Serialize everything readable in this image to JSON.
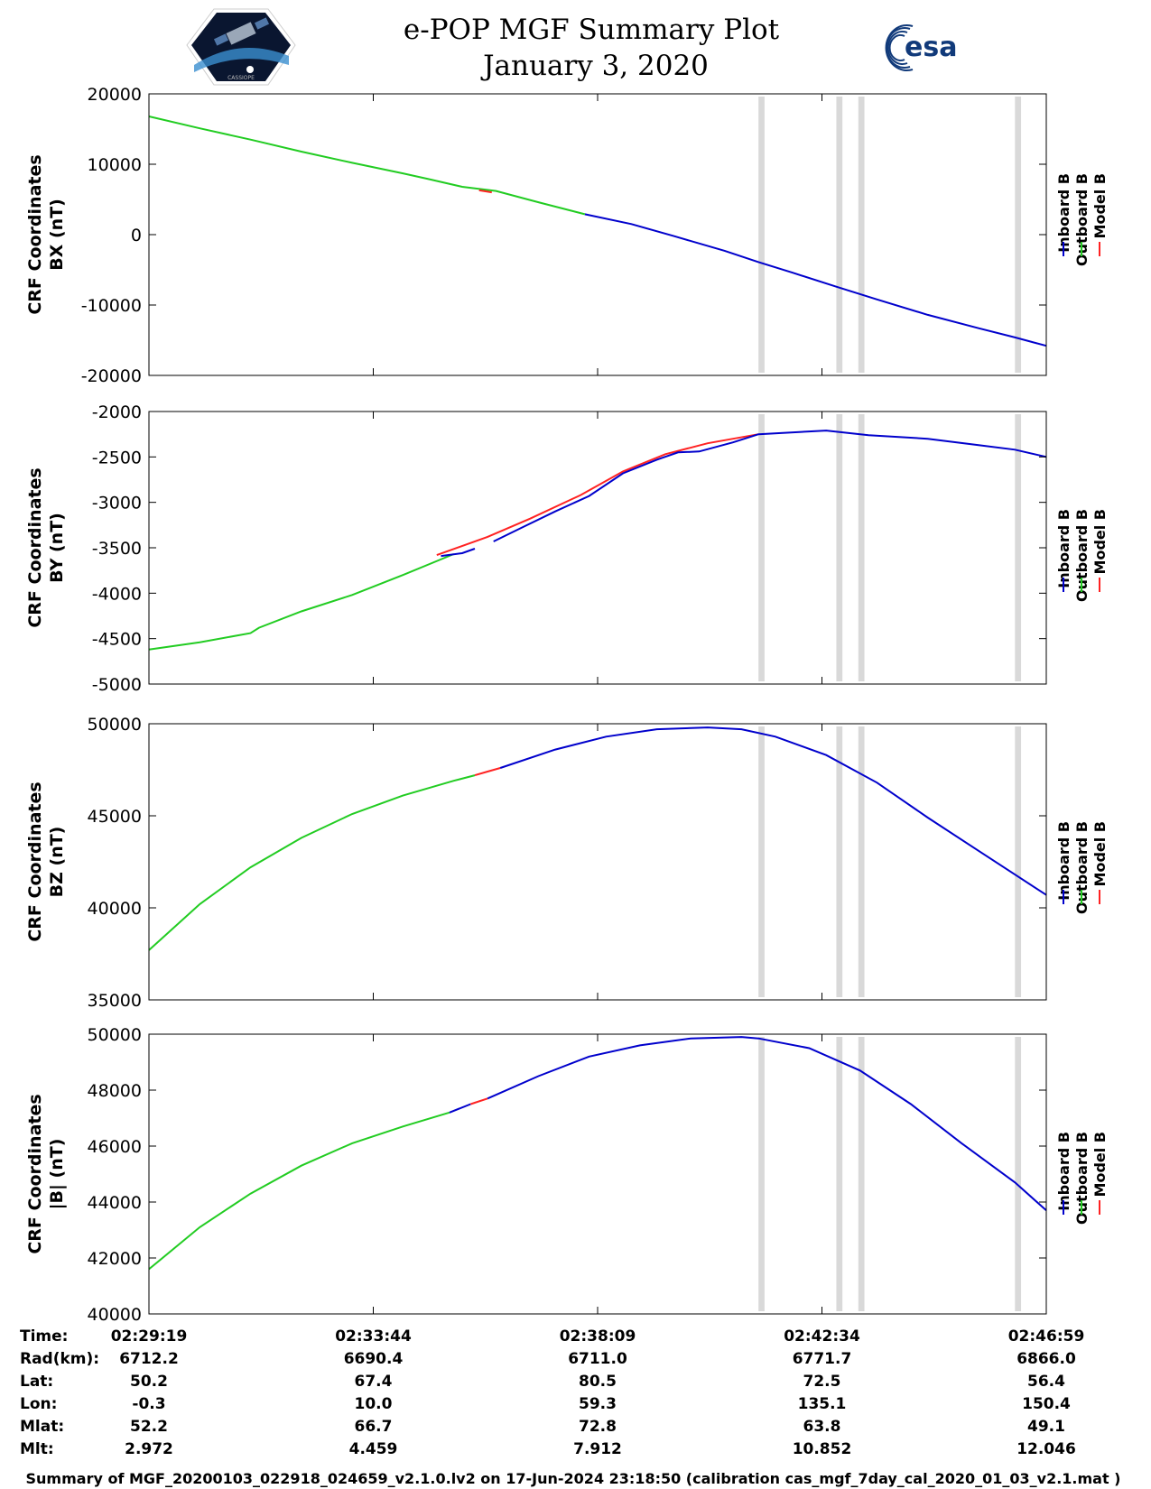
{
  "header": {
    "title_line1": "e-POP MGF Summary Plot",
    "title_line2": "January 3, 2020",
    "left_logo_text": "CASSIOPE",
    "right_logo_text": "esa"
  },
  "colors": {
    "inboard": "#0000cc",
    "outboard": "#22cc22",
    "model": "#ff2222",
    "gap": "#d9d9d9"
  },
  "legend": {
    "inboard": "Inboard B",
    "outboard": "Outboard B",
    "model": "Model B"
  },
  "chart_data": [
    {
      "type": "line",
      "id": "bx",
      "ylabel_line1": "CRF Coordinates",
      "ylabel_line2": "BX (nT)",
      "ylim": [
        -20000,
        20000
      ],
      "yticks": [
        20000,
        10000,
        0,
        -10000,
        -20000
      ],
      "ytick_labels": [
        "20000",
        "10000",
        "0",
        "-10000",
        "-20000"
      ],
      "xlim": [
        0,
        1060
      ],
      "xticks": [
        0,
        265,
        530,
        795,
        1060
      ],
      "gaps": [
        [
          720,
          724
        ],
        [
          812,
          816
        ],
        [
          838,
          842
        ],
        [
          1023,
          1027
        ]
      ],
      "series": [
        {
          "name": "Outboard B",
          "color_key": "outboard",
          "x": [
            0,
            60,
            120,
            180,
            240,
            300,
            330,
            370,
            410,
            460,
            515
          ],
          "y": [
            16800,
            15100,
            13500,
            11800,
            10200,
            8700,
            7900,
            6800,
            6200,
            4600,
            2900
          ]
        },
        {
          "name": "Model B",
          "color_key": "model",
          "x": [
            390,
            400,
            405
          ],
          "y": [
            6300,
            6100,
            6000
          ]
        },
        {
          "name": "Inboard B",
          "color_key": "inboard",
          "x": [
            515,
            570,
            620,
            680,
            720,
            760,
            812,
            860,
            920,
            980,
            1023,
            1060
          ],
          "y": [
            2900,
            1500,
            -200,
            -2300,
            -3900,
            -5400,
            -7400,
            -9200,
            -11400,
            -13300,
            -14600,
            -15800
          ]
        }
      ]
    },
    {
      "type": "line",
      "id": "by",
      "ylabel_line1": "CRF Coordinates",
      "ylabel_line2": "BY (nT)",
      "ylim": [
        -5000,
        -2000
      ],
      "yticks": [
        -2000,
        -2500,
        -3000,
        -3500,
        -4000,
        -4500,
        -5000
      ],
      "ytick_labels": [
        "-2000",
        "-2500",
        "-3000",
        "-3500",
        "-4000",
        "-4500",
        "-5000"
      ],
      "xlim": [
        0,
        1060
      ],
      "xticks": [
        0,
        265,
        530,
        795,
        1060
      ],
      "gaps": [
        [
          720,
          724
        ],
        [
          812,
          816
        ],
        [
          838,
          842
        ],
        [
          1023,
          1027
        ]
      ],
      "series": [
        {
          "name": "Model B",
          "color_key": "model",
          "x": [
            340,
            400,
            450,
            510,
            560,
            610,
            660,
            720
          ],
          "y": [
            -3580,
            -3380,
            -3180,
            -2920,
            -2660,
            -2470,
            -2350,
            -2250
          ]
        },
        {
          "name": "Outboard B",
          "color_key": "outboard",
          "x": [
            0,
            60,
            120,
            130,
            180,
            240,
            300,
            360
          ],
          "y": [
            -4620,
            -4540,
            -4440,
            -4380,
            -4200,
            -4020,
            -3800,
            -3570
          ]
        },
        {
          "name": "Inboard B",
          "color_key": "inboard",
          "x": [
            345,
            370,
            385
          ],
          "y": [
            -3590,
            -3560,
            -3510
          ]
        },
        {
          "name": "Inboard B",
          "color_key": "inboard",
          "x": [
            407,
            440,
            480,
            520,
            560,
            600,
            625,
            650,
            690,
            720,
            780,
            800,
            850,
            920,
            980,
            1023,
            1060
          ],
          "y": [
            -3430,
            -3280,
            -3100,
            -2930,
            -2680,
            -2530,
            -2450,
            -2440,
            -2340,
            -2250,
            -2220,
            -2210,
            -2260,
            -2300,
            -2370,
            -2420,
            -2500
          ]
        }
      ]
    },
    {
      "type": "line",
      "id": "bz",
      "ylabel_line1": "CRF Coordinates",
      "ylabel_line2": "BZ (nT)",
      "ylim": [
        35000,
        50000
      ],
      "yticks": [
        50000,
        45000,
        40000,
        35000
      ],
      "ytick_labels": [
        "50000",
        "45000",
        "40000",
        "35000"
      ],
      "xlim": [
        0,
        1060
      ],
      "xticks": [
        0,
        265,
        530,
        795,
        1060
      ],
      "gaps": [
        [
          720,
          724
        ],
        [
          812,
          816
        ],
        [
          838,
          842
        ],
        [
          1023,
          1027
        ]
      ],
      "series": [
        {
          "name": "Outboard B",
          "color_key": "outboard",
          "x": [
            0,
            60,
            120,
            180,
            240,
            300,
            360,
            385
          ],
          "y": [
            37700,
            40200,
            42200,
            43800,
            45100,
            46100,
            46900,
            47200
          ]
        },
        {
          "name": "Model B",
          "color_key": "model",
          "x": [
            385,
            400,
            415
          ],
          "y": [
            47200,
            47400,
            47600
          ]
        },
        {
          "name": "Inboard B",
          "color_key": "inboard",
          "x": [
            415,
            480,
            540,
            600,
            660,
            700,
            740,
            800,
            860,
            920,
            980,
            1060
          ],
          "y": [
            47600,
            48600,
            49300,
            49700,
            49800,
            49700,
            49300,
            48300,
            46800,
            44900,
            43100,
            40700
          ]
        }
      ]
    },
    {
      "type": "line",
      "id": "bmag",
      "ylabel_line1": "CRF Coordinates",
      "ylabel_line2": "|B| (nT)",
      "ylim": [
        40000,
        50000
      ],
      "yticks": [
        50000,
        48000,
        46000,
        44000,
        42000,
        40000
      ],
      "ytick_labels": [
        "50000",
        "48000",
        "46000",
        "44000",
        "42000",
        "40000"
      ],
      "xlim": [
        0,
        1060
      ],
      "xticks": [
        0,
        265,
        530,
        795,
        1060
      ],
      "gaps": [
        [
          720,
          724
        ],
        [
          812,
          816
        ],
        [
          838,
          842
        ],
        [
          1023,
          1027
        ]
      ],
      "series": [
        {
          "name": "Outboard B",
          "color_key": "outboard",
          "x": [
            0,
            60,
            120,
            180,
            240,
            300,
            355
          ],
          "y": [
            41600,
            43100,
            44300,
            45300,
            46100,
            46700,
            47200
          ]
        },
        {
          "name": "Inboard B",
          "color_key": "inboard",
          "x": [
            355,
            380
          ],
          "y": [
            47200,
            47500
          ]
        },
        {
          "name": "Model B",
          "color_key": "model",
          "x": [
            380,
            400
          ],
          "y": [
            47500,
            47700
          ]
        },
        {
          "name": "Inboard B",
          "color_key": "inboard",
          "x": [
            400,
            460,
            520,
            580,
            640,
            700,
            720,
            780,
            840,
            900,
            960,
            1023,
            1060
          ],
          "y": [
            47700,
            48500,
            49200,
            49600,
            49850,
            49900,
            49850,
            49500,
            48700,
            47500,
            46100,
            44700,
            43700
          ]
        }
      ]
    }
  ],
  "ephemeris": {
    "labels": [
      "Time:",
      "Rad(km):",
      "Lat:",
      "Lon:",
      "Mlat:",
      "Mlt:"
    ],
    "columns": [
      {
        "values": [
          "02:29:19",
          "6712.2",
          "50.2",
          "-0.3",
          "52.2",
          "2.972"
        ]
      },
      {
        "values": [
          "02:33:44",
          "6690.4",
          "67.4",
          "10.0",
          "66.7",
          "4.459"
        ]
      },
      {
        "values": [
          "02:38:09",
          "6711.0",
          "80.5",
          "59.3",
          "72.8",
          "7.912"
        ]
      },
      {
        "values": [
          "02:42:34",
          "6771.7",
          "72.5",
          "135.1",
          "63.8",
          "10.852"
        ]
      },
      {
        "values": [
          "02:46:59",
          "6866.0",
          "56.4",
          "150.4",
          "49.1",
          "12.046"
        ]
      }
    ]
  },
  "footer": {
    "text": "Summary of MGF_20200103_022918_024659_v2.1.0.lv2 on 17-Jun-2024 23:18:50 (calibration cas_mgf_7day_cal_2020_01_03_v2.1.mat )"
  }
}
